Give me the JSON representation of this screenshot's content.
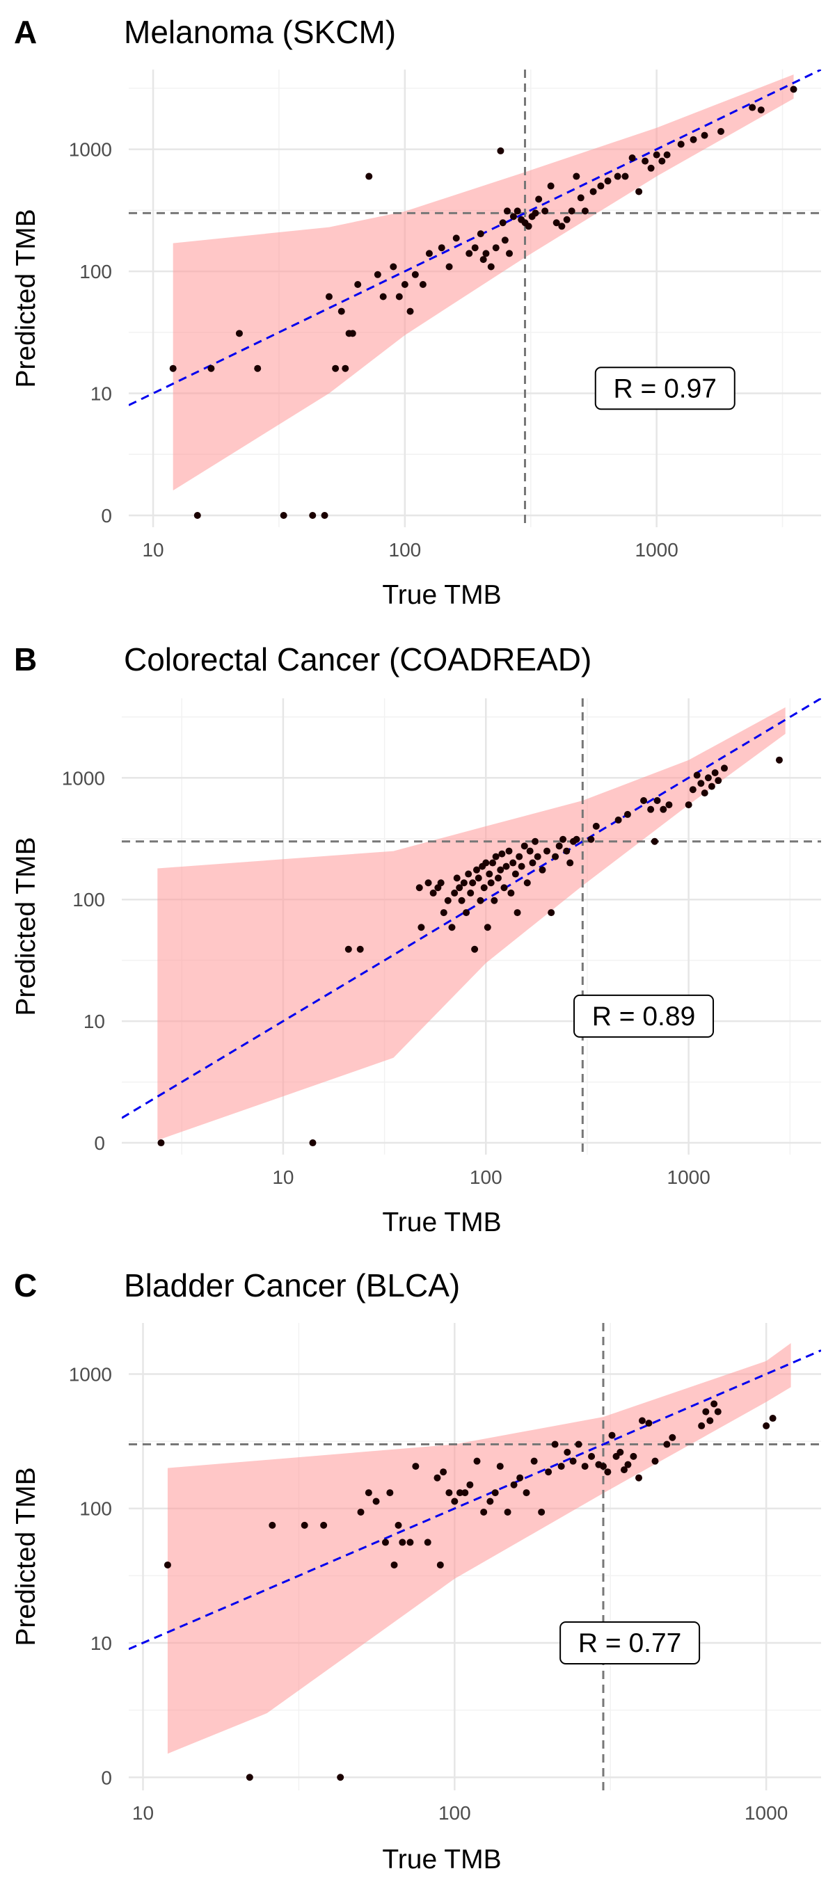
{
  "chart_data": [
    {
      "type": "scatter",
      "panel_label": "A",
      "title": "Melanoma (SKCM)",
      "xlabel": "True TMB",
      "ylabel": "Predicted TMB",
      "x_scale": "log",
      "y_scale": "log",
      "xlim": [
        8,
        4500
      ],
      "ylim": [
        0.8,
        4500
      ],
      "x_ticks": [
        10,
        100,
        1000
      ],
      "y_ticks": [
        1,
        10,
        100,
        1000
      ],
      "y_tick_labels": [
        "0",
        "10",
        "100",
        "1000"
      ],
      "grid": true,
      "threshold_x": 300,
      "threshold_y": 300,
      "annotation": "R = 0.97",
      "annotation_pos": [
        1080,
        11
      ],
      "colors": {
        "points": "#1a0000",
        "band": "#ff9999",
        "fit": "#0000ee",
        "threshold": "#777777"
      },
      "fit_line": {
        "x": [
          8,
          4500
        ],
        "y": [
          8,
          4500
        ]
      },
      "band": {
        "x": [
          12,
          50,
          100,
          300,
          1000,
          3500
        ],
        "upper": [
          170,
          230,
          310,
          650,
          1500,
          4100
        ],
        "lower": [
          1.6,
          10,
          30,
          130,
          600,
          2600
        ]
      },
      "points": [
        [
          15,
          1
        ],
        [
          33,
          1
        ],
        [
          43,
          1
        ],
        [
          48,
          1
        ],
        [
          12,
          16
        ],
        [
          17,
          16
        ],
        [
          22,
          31
        ],
        [
          26,
          16
        ],
        [
          50,
          62
        ],
        [
          53,
          16
        ],
        [
          56,
          47
        ],
        [
          58,
          16
        ],
        [
          60,
          31
        ],
        [
          62,
          31
        ],
        [
          65,
          78
        ],
        [
          72,
          600
        ],
        [
          78,
          94
        ],
        [
          82,
          62
        ],
        [
          90,
          109
        ],
        [
          95,
          62
        ],
        [
          100,
          78
        ],
        [
          105,
          47
        ],
        [
          110,
          94
        ],
        [
          118,
          78
        ],
        [
          125,
          140
        ],
        [
          140,
          156
        ],
        [
          150,
          109
        ],
        [
          160,
          187
        ],
        [
          180,
          140
        ],
        [
          190,
          156
        ],
        [
          200,
          203
        ],
        [
          205,
          125
        ],
        [
          210,
          140
        ],
        [
          220,
          109
        ],
        [
          230,
          156
        ],
        [
          240,
          970
        ],
        [
          245,
          250
        ],
        [
          250,
          180
        ],
        [
          255,
          312
        ],
        [
          260,
          140
        ],
        [
          270,
          281
        ],
        [
          280,
          312
        ],
        [
          290,
          265
        ],
        [
          300,
          250
        ],
        [
          310,
          234
        ],
        [
          320,
          281
        ],
        [
          330,
          300
        ],
        [
          340,
          390
        ],
        [
          360,
          312
        ],
        [
          380,
          500
        ],
        [
          400,
          250
        ],
        [
          420,
          234
        ],
        [
          440,
          265
        ],
        [
          460,
          312
        ],
        [
          480,
          600
        ],
        [
          500,
          400
        ],
        [
          520,
          312
        ],
        [
          560,
          450
        ],
        [
          600,
          500
        ],
        [
          640,
          550
        ],
        [
          700,
          600
        ],
        [
          750,
          600
        ],
        [
          800,
          850
        ],
        [
          850,
          450
        ],
        [
          900,
          800
        ],
        [
          950,
          700
        ],
        [
          1000,
          900
        ],
        [
          1050,
          800
        ],
        [
          1100,
          900
        ],
        [
          1250,
          1100
        ],
        [
          1400,
          1200
        ],
        [
          1550,
          1300
        ],
        [
          1800,
          1400
        ],
        [
          2400,
          2200
        ],
        [
          2600,
          2100
        ],
        [
          3500,
          3100
        ]
      ]
    },
    {
      "type": "scatter",
      "panel_label": "B",
      "title": "Colorectal Cancer (COADREAD)",
      "xlabel": "True TMB",
      "ylabel": "Predicted TMB",
      "x_scale": "log",
      "y_scale": "log",
      "xlim": [
        1.6,
        4500
      ],
      "ylim": [
        0.8,
        4500
      ],
      "x_ticks": [
        10,
        100,
        1000
      ],
      "y_ticks": [
        1,
        10,
        100,
        1000
      ],
      "y_tick_labels": [
        "0",
        "10",
        "100",
        "1000"
      ],
      "grid": true,
      "threshold_x": 300,
      "threshold_y": 300,
      "annotation": "R = 0.89",
      "annotation_pos": [
        600,
        11
      ],
      "colors": {
        "points": "#1a0000",
        "band": "#ff9999",
        "fit": "#0000ee",
        "threshold": "#777777"
      },
      "fit_line": {
        "x": [
          1.6,
          4500
        ],
        "y": [
          1.6,
          4500
        ]
      },
      "band": {
        "x": [
          2.4,
          35,
          100,
          300,
          1000,
          3000
        ],
        "upper": [
          180,
          250,
          400,
          650,
          1400,
          3800
        ],
        "lower": [
          1.05,
          5,
          30,
          130,
          600,
          2300
        ]
      },
      "points": [
        [
          2.5,
          1
        ],
        [
          14,
          1
        ],
        [
          21,
          39
        ],
        [
          24,
          39
        ],
        [
          47,
          125
        ],
        [
          48,
          59
        ],
        [
          52,
          137
        ],
        [
          55,
          113
        ],
        [
          58,
          125
        ],
        [
          60,
          137
        ],
        [
          62,
          78
        ],
        [
          65,
          98
        ],
        [
          68,
          59
        ],
        [
          70,
          113
        ],
        [
          72,
          150
        ],
        [
          74,
          125
        ],
        [
          76,
          98
        ],
        [
          78,
          137
        ],
        [
          80,
          78
        ],
        [
          82,
          162
        ],
        [
          84,
          113
        ],
        [
          86,
          137
        ],
        [
          88,
          39
        ],
        [
          90,
          175
        ],
        [
          92,
          150
        ],
        [
          94,
          98
        ],
        [
          96,
          187
        ],
        [
          98,
          125
        ],
        [
          100,
          200
        ],
        [
          102,
          59
        ],
        [
          104,
          162
        ],
        [
          106,
          137
        ],
        [
          108,
          200
        ],
        [
          110,
          98
        ],
        [
          112,
          225
        ],
        [
          115,
          150
        ],
        [
          118,
          175
        ],
        [
          120,
          237
        ],
        [
          123,
          125
        ],
        [
          126,
          187
        ],
        [
          130,
          250
        ],
        [
          133,
          113
        ],
        [
          136,
          200
        ],
        [
          140,
          162
        ],
        [
          143,
          78
        ],
        [
          146,
          225
        ],
        [
          150,
          187
        ],
        [
          155,
          275
        ],
        [
          160,
          137
        ],
        [
          165,
          250
        ],
        [
          170,
          200
        ],
        [
          175,
          300
        ],
        [
          180,
          225
        ],
        [
          190,
          175
        ],
        [
          200,
          250
        ],
        [
          210,
          78
        ],
        [
          220,
          225
        ],
        [
          230,
          275
        ],
        [
          240,
          312
        ],
        [
          250,
          250
        ],
        [
          260,
          200
        ],
        [
          270,
          300
        ],
        [
          280,
          312
        ],
        [
          330,
          312
        ],
        [
          350,
          400
        ],
        [
          450,
          450
        ],
        [
          500,
          500
        ],
        [
          600,
          650
        ],
        [
          650,
          550
        ],
        [
          680,
          300
        ],
        [
          700,
          650
        ],
        [
          750,
          550
        ],
        [
          800,
          600
        ],
        [
          1000,
          600
        ],
        [
          1050,
          800
        ],
        [
          1100,
          1050
        ],
        [
          1150,
          900
        ],
        [
          1200,
          750
        ],
        [
          1250,
          1000
        ],
        [
          1300,
          850
        ],
        [
          1350,
          1100
        ],
        [
          1400,
          950
        ],
        [
          1500,
          1200
        ],
        [
          2800,
          1400
        ]
      ]
    },
    {
      "type": "scatter",
      "panel_label": "C",
      "title": "Bladder Cancer (BLCA)",
      "xlabel": "True TMB",
      "ylabel": "Predicted TMB",
      "x_scale": "log",
      "y_scale": "log",
      "xlim": [
        9,
        1500
      ],
      "ylim": [
        0.8,
        2400
      ],
      "x_ticks": [
        10,
        100,
        1000
      ],
      "y_ticks": [
        1,
        10,
        100,
        1000
      ],
      "y_tick_labels": [
        "0",
        "10",
        "100",
        "1000"
      ],
      "grid": true,
      "threshold_x": 300,
      "threshold_y": 300,
      "annotation": "R = 0.77",
      "annotation_pos": [
        365,
        10
      ],
      "colors": {
        "points": "#1a0000",
        "band": "#ff9999",
        "fit": "#0000ee",
        "threshold": "#777777"
      },
      "fit_line": {
        "x": [
          9,
          1500
        ],
        "y": [
          9,
          1500
        ]
      },
      "band": {
        "x": [
          12,
          25,
          100,
          300,
          1000,
          1200
        ],
        "upper": [
          200,
          230,
          300,
          480,
          1250,
          1700
        ],
        "lower": [
          1.5,
          3,
          30,
          130,
          620,
          800
        ]
      },
      "points": [
        [
          12,
          38
        ],
        [
          22,
          1
        ],
        [
          26,
          75
        ],
        [
          33,
          75
        ],
        [
          38,
          75
        ],
        [
          43,
          1
        ],
        [
          50,
          94
        ],
        [
          53,
          131
        ],
        [
          56,
          113
        ],
        [
          60,
          56
        ],
        [
          62,
          131
        ],
        [
          64,
          38
        ],
        [
          66,
          75
        ],
        [
          68,
          56
        ],
        [
          72,
          56
        ],
        [
          75,
          206
        ],
        [
          82,
          56
        ],
        [
          88,
          169
        ],
        [
          90,
          38
        ],
        [
          92,
          187
        ],
        [
          96,
          131
        ],
        [
          100,
          113
        ],
        [
          104,
          131
        ],
        [
          108,
          131
        ],
        [
          112,
          150
        ],
        [
          118,
          225
        ],
        [
          124,
          94
        ],
        [
          130,
          113
        ],
        [
          135,
          131
        ],
        [
          140,
          206
        ],
        [
          148,
          94
        ],
        [
          155,
          150
        ],
        [
          162,
          169
        ],
        [
          170,
          131
        ],
        [
          180,
          225
        ],
        [
          190,
          94
        ],
        [
          200,
          187
        ],
        [
          210,
          300
        ],
        [
          220,
          206
        ],
        [
          230,
          262
        ],
        [
          240,
          225
        ],
        [
          250,
          300
        ],
        [
          262,
          206
        ],
        [
          275,
          244
        ],
        [
          290,
          212
        ],
        [
          300,
          206
        ],
        [
          310,
          187
        ],
        [
          320,
          350
        ],
        [
          330,
          244
        ],
        [
          340,
          262
        ],
        [
          350,
          194
        ],
        [
          360,
          212
        ],
        [
          375,
          244
        ],
        [
          390,
          169
        ],
        [
          400,
          450
        ],
        [
          420,
          431
        ],
        [
          440,
          225
        ],
        [
          480,
          300
        ],
        [
          500,
          337
        ],
        [
          620,
          412
        ],
        [
          640,
          525
        ],
        [
          660,
          450
        ],
        [
          680,
          600
        ],
        [
          700,
          525
        ],
        [
          1000,
          412
        ],
        [
          1050,
          469
        ]
      ]
    }
  ]
}
